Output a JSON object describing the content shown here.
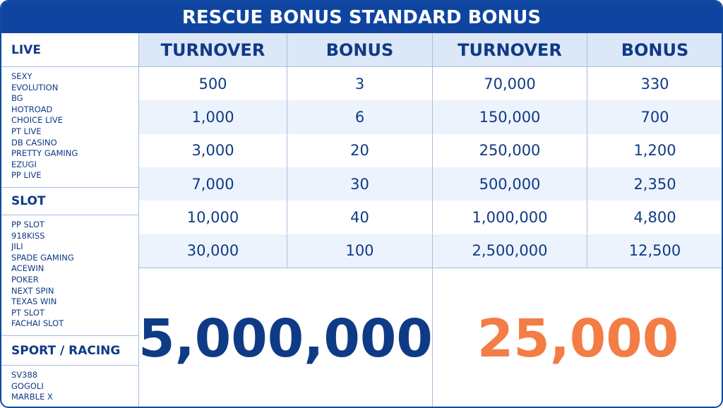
{
  "header": {
    "title": "RESCUE BONUS STANDARD BONUS"
  },
  "sidebar": {
    "sections": [
      {
        "title": "LIVE",
        "items": [
          "SEXY",
          "EVOLUTION",
          "BG",
          "HOTROAD",
          "CHOICE LIVE",
          "PT LIVE",
          "DB CASINO",
          "PRETTY GAMING",
          "EZUGI",
          "PP LIVE"
        ]
      },
      {
        "title": "SLOT",
        "items": [
          "PP SLOT",
          "918KISS",
          "JILI",
          "SPADE GAMING",
          "ACEWIN",
          "POKER",
          "NEXT SPIN",
          "TEXAS WIN",
          "PT SLOT",
          "FACHAI SLOT"
        ]
      },
      {
        "title": "SPORT / RACING",
        "items": [
          "SV388",
          "GOGOLI",
          "MARBLE X"
        ]
      }
    ]
  },
  "table": {
    "columns": [
      "TURNOVER",
      "BONUS",
      "TURNOVER",
      "BONUS"
    ],
    "rows": [
      [
        "500",
        "3",
        "70,000",
        "330"
      ],
      [
        "1,000",
        "6",
        "150,000",
        "700"
      ],
      [
        "3,000",
        "20",
        "250,000",
        "1,200"
      ],
      [
        "7,000",
        "30",
        "500,000",
        "2,350"
      ],
      [
        "10,000",
        "40",
        "1,000,000",
        "4,800"
      ],
      [
        "30,000",
        "100",
        "2,500,000",
        "12,500"
      ]
    ]
  },
  "highlight": {
    "turnover": "5,000,000",
    "bonus": "25,000"
  }
}
